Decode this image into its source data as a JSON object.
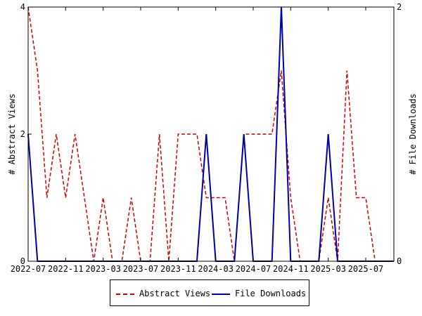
{
  "chart_data": {
    "type": "line",
    "xlabel": "",
    "ylabel": "# Abstract Views",
    "y2label": "# File Downloads",
    "ylim": [
      0,
      4
    ],
    "y2lim": [
      0,
      2
    ],
    "xlim": [
      "2022-07",
      "2025-10"
    ],
    "y_ticks": [
      "0",
      "2",
      "4"
    ],
    "y2_ticks": [
      "0",
      "2"
    ],
    "x_ticks": [
      "2022-07",
      "2022-11",
      "2023-03",
      "2023-07",
      "2023-11",
      "2024-03",
      "2024-07",
      "2024-11",
      "2025-03",
      "2025-07"
    ],
    "grid": false,
    "legend_position": "bottom",
    "series": [
      {
        "name": "Abstract Views",
        "axis": "left",
        "color": "#cc0000",
        "style": "dashed",
        "x": [
          "2022-07",
          "2022-08",
          "2022-09",
          "2022-10",
          "2022-11",
          "2022-12",
          "2023-01",
          "2023-02",
          "2023-03",
          "2023-04",
          "2023-05",
          "2023-06",
          "2023-07",
          "2023-08",
          "2023-09",
          "2023-10",
          "2023-11",
          "2023-12",
          "2024-01",
          "2024-02",
          "2024-03",
          "2024-04",
          "2024-05",
          "2024-06",
          "2024-07",
          "2024-08",
          "2024-09",
          "2024-10",
          "2024-11",
          "2024-12",
          "2025-01",
          "2025-02",
          "2025-03",
          "2025-04",
          "2025-05",
          "2025-06",
          "2025-07",
          "2025-08",
          "2025-09",
          "2025-10"
        ],
        "values": [
          4,
          3,
          1,
          2,
          1,
          2,
          1,
          0,
          1,
          0,
          0,
          1,
          0,
          0,
          2,
          0,
          2,
          2,
          2,
          1,
          1,
          1,
          0,
          2,
          2,
          2,
          2,
          3,
          1,
          0,
          0,
          0,
          1,
          0,
          3,
          1,
          1,
          0,
          0,
          0
        ]
      },
      {
        "name": "File Downloads",
        "axis": "right",
        "color": "#0000aa",
        "style": "solid",
        "x": [
          "2022-07",
          "2022-08",
          "2022-09",
          "2022-10",
          "2022-11",
          "2022-12",
          "2023-01",
          "2023-02",
          "2023-03",
          "2023-04",
          "2023-05",
          "2023-06",
          "2023-07",
          "2023-08",
          "2023-09",
          "2023-10",
          "2023-11",
          "2023-12",
          "2024-01",
          "2024-02",
          "2024-03",
          "2024-04",
          "2024-05",
          "2024-06",
          "2024-07",
          "2024-08",
          "2024-09",
          "2024-10",
          "2024-11",
          "2024-12",
          "2025-01",
          "2025-02",
          "2025-03",
          "2025-04",
          "2025-05",
          "2025-06",
          "2025-07",
          "2025-08",
          "2025-09",
          "2025-10"
        ],
        "values": [
          1,
          0,
          0,
          0,
          0,
          0,
          0,
          0,
          0,
          0,
          0,
          0,
          0,
          0,
          0,
          0,
          0,
          0,
          0,
          1,
          0,
          0,
          0,
          1,
          0,
          0,
          0,
          2,
          0,
          0,
          0,
          0,
          1,
          0,
          0,
          0,
          0,
          0,
          0,
          0
        ]
      }
    ]
  }
}
